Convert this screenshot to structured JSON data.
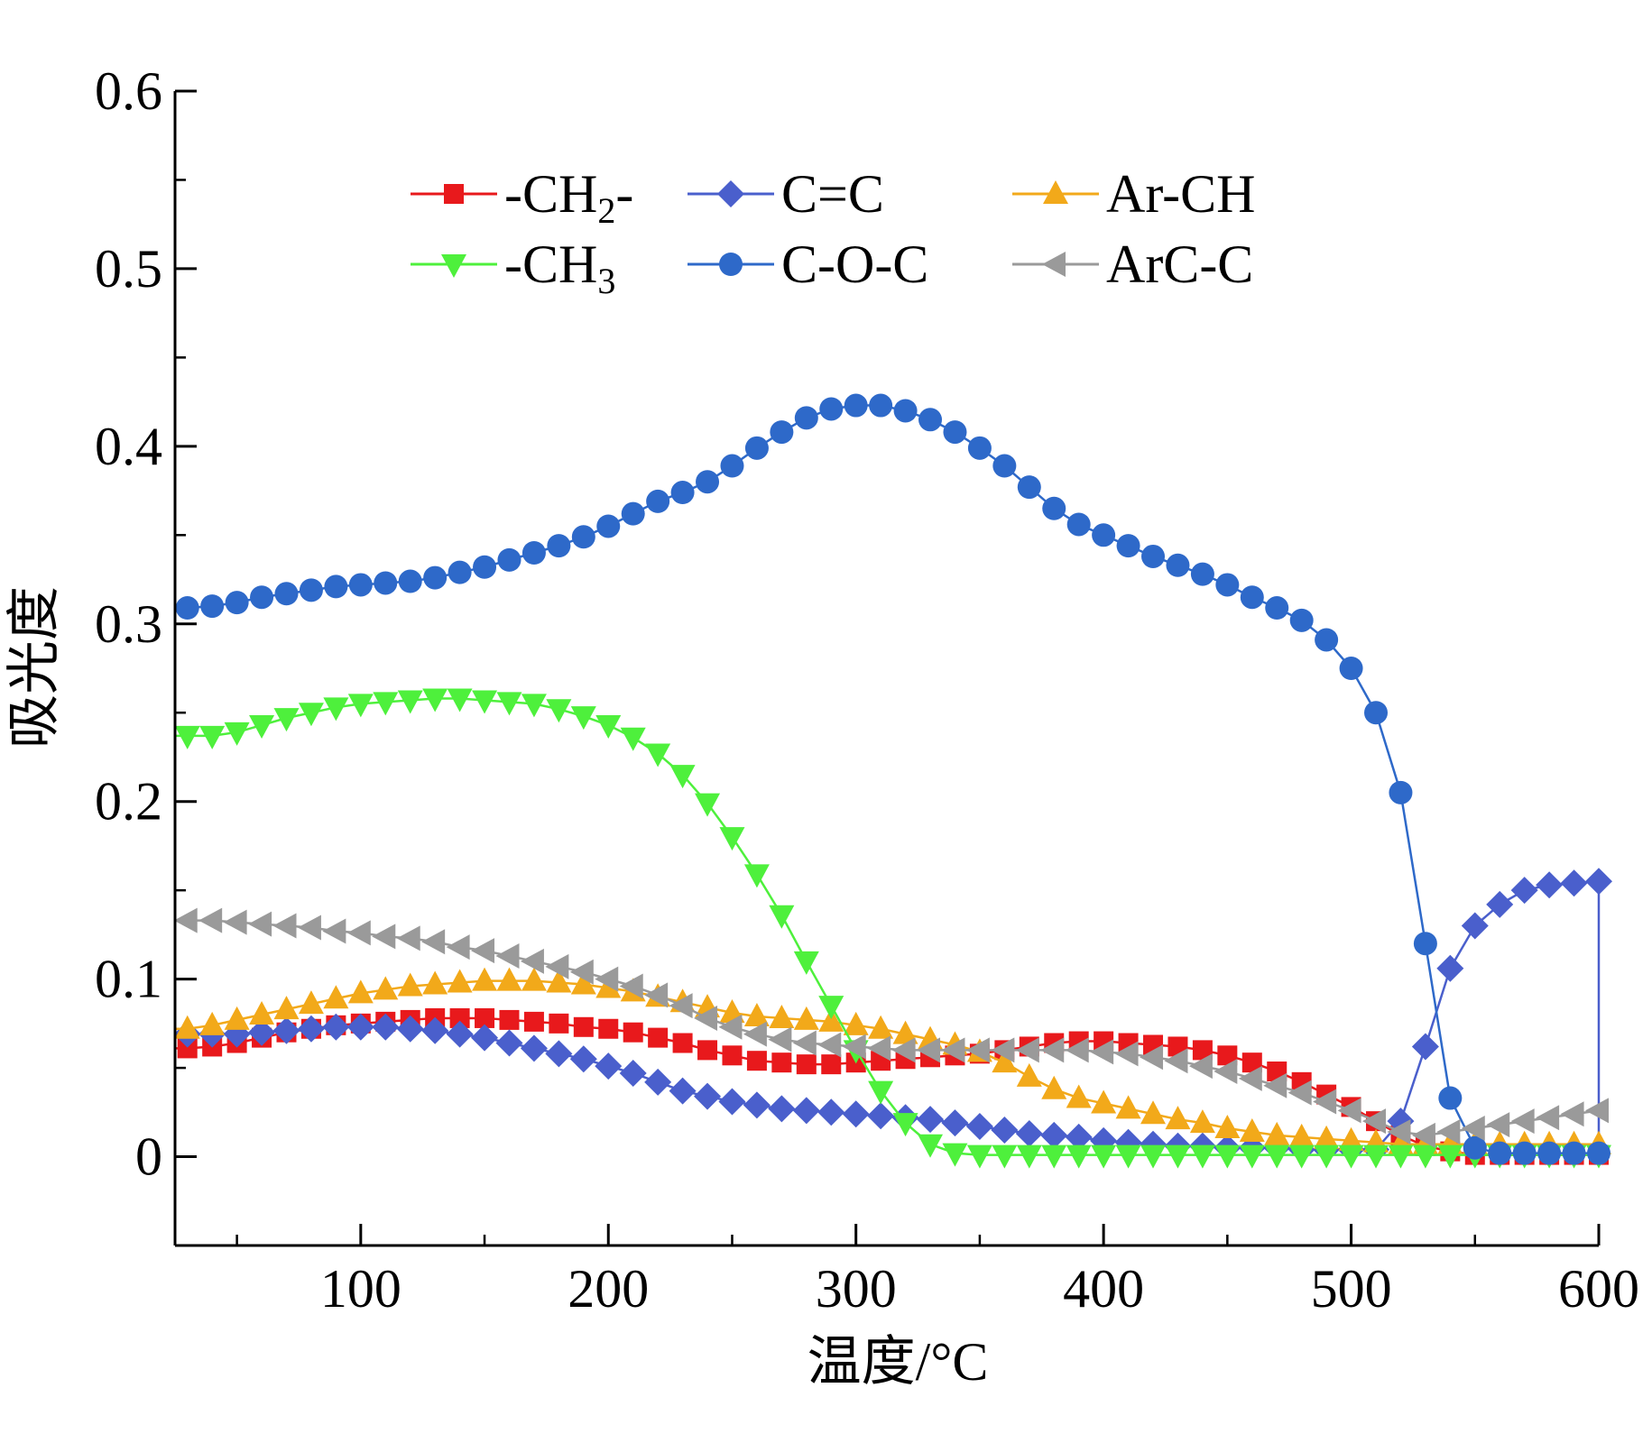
{
  "chart_data": {
    "type": "line",
    "title": "",
    "xlabel": "温度/°C",
    "ylabel": "吸光度",
    "xlim": [
      25,
      600
    ],
    "ylim": [
      -0.05,
      0.6
    ],
    "x_ticks": [
      "100",
      "200",
      "300",
      "400",
      "500",
      "600"
    ],
    "y_ticks": [
      "0",
      "0.1",
      "0.2",
      "0.3",
      "0.4",
      "0.5",
      "0.6"
    ],
    "grid": false,
    "legend_position": "top-center, 2 rows x 3 columns",
    "x": [
      30,
      40,
      50,
      60,
      70,
      80,
      90,
      100,
      110,
      120,
      130,
      140,
      150,
      160,
      170,
      180,
      190,
      200,
      210,
      220,
      230,
      240,
      250,
      260,
      270,
      280,
      290,
      300,
      310,
      320,
      330,
      340,
      350,
      360,
      370,
      380,
      390,
      400,
      410,
      420,
      430,
      440,
      450,
      460,
      470,
      480,
      490,
      500,
      510,
      520,
      530,
      540,
      550,
      560,
      570,
      580,
      590,
      600
    ],
    "series": [
      {
        "name": "-CH2-",
        "legend_main": "-CH",
        "legend_sub": "2",
        "legend_tail": "-",
        "color": "#e8191c",
        "marker": "square",
        "values": [
          0.061,
          0.062,
          0.064,
          0.067,
          0.07,
          0.072,
          0.074,
          0.075,
          0.076,
          0.077,
          0.078,
          0.078,
          0.078,
          0.077,
          0.076,
          0.075,
          0.073,
          0.072,
          0.07,
          0.067,
          0.064,
          0.06,
          0.057,
          0.054,
          0.053,
          0.052,
          0.052,
          0.053,
          0.054,
          0.055,
          0.056,
          0.057,
          0.058,
          0.06,
          0.062,
          0.064,
          0.065,
          0.065,
          0.064,
          0.063,
          0.062,
          0.06,
          0.057,
          0.053,
          0.048,
          0.042,
          0.035,
          0.028,
          0.02,
          0.012,
          0.006,
          0.003,
          0.001,
          0.001,
          0.001,
          0.001,
          0.001,
          0.001
        ]
      },
      {
        "name": "C=C",
        "legend_main": "C=C",
        "legend_sub": "",
        "legend_tail": "",
        "color": "#4a5fcc",
        "marker": "diamond",
        "values": [
          0.069,
          0.069,
          0.069,
          0.07,
          0.071,
          0.072,
          0.073,
          0.073,
          0.073,
          0.072,
          0.071,
          0.069,
          0.067,
          0.064,
          0.061,
          0.058,
          0.055,
          0.051,
          0.047,
          0.042,
          0.037,
          0.034,
          0.031,
          0.029,
          0.027,
          0.026,
          0.025,
          0.024,
          0.023,
          0.022,
          0.021,
          0.019,
          0.017,
          0.015,
          0.013,
          0.012,
          0.011,
          0.009,
          0.008,
          0.007,
          0.006,
          0.006,
          0.005,
          0.005,
          0.005,
          0.004,
          0.004,
          0.004,
          0.004,
          0.02,
          0.062,
          0.106,
          0.13,
          0.142,
          0.15,
          0.153,
          0.154,
          0.155
        ]
      },
      {
        "name": "Ar-CH",
        "legend_main": "Ar-CH",
        "legend_sub": "",
        "legend_tail": "",
        "color": "#f2a91a",
        "marker": "triangle-up",
        "values": [
          0.072,
          0.074,
          0.077,
          0.08,
          0.083,
          0.086,
          0.089,
          0.092,
          0.094,
          0.096,
          0.097,
          0.098,
          0.099,
          0.099,
          0.099,
          0.098,
          0.097,
          0.095,
          0.093,
          0.09,
          0.087,
          0.084,
          0.081,
          0.079,
          0.078,
          0.077,
          0.076,
          0.074,
          0.072,
          0.069,
          0.066,
          0.063,
          0.059,
          0.053,
          0.045,
          0.038,
          0.033,
          0.03,
          0.027,
          0.024,
          0.021,
          0.019,
          0.016,
          0.014,
          0.012,
          0.011,
          0.01,
          0.009,
          0.008,
          0.007,
          0.007,
          0.007,
          0.007,
          0.007,
          0.007,
          0.007,
          0.007,
          0.007
        ]
      },
      {
        "name": "-CH3",
        "legend_main": "-CH",
        "legend_sub": "3",
        "legend_tail": "",
        "color": "#4ef03c",
        "marker": "triangle-down",
        "values": [
          0.237,
          0.237,
          0.239,
          0.243,
          0.247,
          0.25,
          0.253,
          0.255,
          0.256,
          0.257,
          0.258,
          0.258,
          0.257,
          0.256,
          0.255,
          0.252,
          0.248,
          0.243,
          0.236,
          0.227,
          0.215,
          0.199,
          0.18,
          0.159,
          0.136,
          0.11,
          0.085,
          0.06,
          0.037,
          0.019,
          0.007,
          0.002,
          0.001,
          0.001,
          0.001,
          0.001,
          0.001,
          0.001,
          0.001,
          0.001,
          0.001,
          0.001,
          0.001,
          0.001,
          0.001,
          0.001,
          0.001,
          0.001,
          0.001,
          0.001,
          0.001,
          0.001,
          0.001,
          0.001,
          0.001,
          0.001,
          0.001,
          0.001
        ]
      },
      {
        "name": "C-O-C",
        "legend_main": "C-O-C",
        "legend_sub": "",
        "legend_tail": "",
        "color": "#2e69c9",
        "marker": "circle",
        "values": [
          0.309,
          0.31,
          0.312,
          0.315,
          0.317,
          0.319,
          0.321,
          0.322,
          0.323,
          0.324,
          0.326,
          0.329,
          0.332,
          0.336,
          0.34,
          0.344,
          0.349,
          0.355,
          0.362,
          0.369,
          0.374,
          0.38,
          0.389,
          0.399,
          0.408,
          0.416,
          0.421,
          0.423,
          0.423,
          0.42,
          0.415,
          0.408,
          0.399,
          0.389,
          0.377,
          0.365,
          0.356,
          0.35,
          0.344,
          0.338,
          0.333,
          0.328,
          0.322,
          0.315,
          0.309,
          0.302,
          0.291,
          0.275,
          0.25,
          0.205,
          0.12,
          0.033,
          0.005,
          0.002,
          0.002,
          0.002,
          0.002,
          0.002
        ]
      },
      {
        "name": "ArC-C",
        "legend_main": "ArC-C",
        "legend_sub": "",
        "legend_tail": "",
        "color": "#9a9a9a",
        "marker": "triangle-left",
        "values": [
          0.133,
          0.133,
          0.132,
          0.131,
          0.13,
          0.129,
          0.127,
          0.126,
          0.124,
          0.123,
          0.121,
          0.118,
          0.116,
          0.113,
          0.11,
          0.107,
          0.104,
          0.1,
          0.096,
          0.091,
          0.085,
          0.078,
          0.073,
          0.069,
          0.066,
          0.064,
          0.063,
          0.062,
          0.061,
          0.06,
          0.06,
          0.06,
          0.06,
          0.06,
          0.06,
          0.06,
          0.06,
          0.059,
          0.058,
          0.056,
          0.054,
          0.051,
          0.048,
          0.044,
          0.04,
          0.036,
          0.031,
          0.026,
          0.02,
          0.014,
          0.012,
          0.014,
          0.016,
          0.018,
          0.02,
          0.022,
          0.024,
          0.026
        ]
      }
    ]
  }
}
